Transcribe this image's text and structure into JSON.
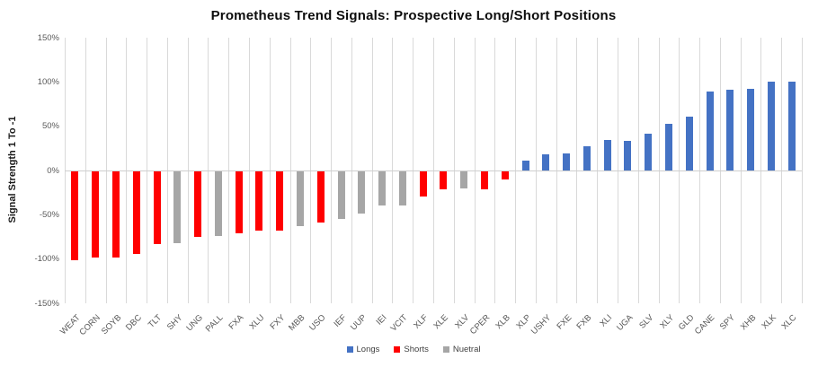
{
  "title": "Prometheus Trend Signals: Prospective Long/Short Positions",
  "colors": {
    "long": "#4472C4",
    "short": "#FF0000",
    "neutral": "#A6A6A6",
    "gridline": "#D9D9D9",
    "axis_text": "#595959"
  },
  "chart_data": {
    "type": "bar",
    "title": "Prometheus Trend Signals: Prospective Long/Short Positions",
    "xlabel": "",
    "ylabel": "Signal Strength 1 To -1",
    "ylim": [
      -150,
      150
    ],
    "yticks": [
      {
        "value": 150,
        "label": "150%"
      },
      {
        "value": 100,
        "label": "100%"
      },
      {
        "value": 50,
        "label": "50%"
      },
      {
        "value": 0,
        "label": "0%"
      },
      {
        "value": -50,
        "label": "-50%"
      },
      {
        "value": -100,
        "label": "-100%"
      },
      {
        "value": -150,
        "label": "-150%"
      }
    ],
    "grid": "vertical-only",
    "legend_position": "bottom-center",
    "value_unit": "percent",
    "categories": [
      "WEAT",
      "CORN",
      "SOYB",
      "DBC",
      "TLT",
      "SHY",
      "UNG",
      "PALL",
      "FXA",
      "XLU",
      "FXY",
      "MBB",
      "USO",
      "IEF",
      "UUP",
      "IEI",
      "VCIT",
      "XLF",
      "XLE",
      "XLV",
      "CPER",
      "XLB",
      "XLP",
      "USHY",
      "FXE",
      "FXB",
      "XLI",
      "UGA",
      "SLV",
      "XLY",
      "GLD",
      "CANE",
      "SPY",
      "XHB",
      "XLK",
      "XLC"
    ],
    "values": [
      -100,
      -97,
      -97,
      -93,
      -82,
      -81,
      -74,
      -73,
      -70,
      -67,
      -67,
      -62,
      -58,
      -54,
      -48,
      -39,
      -39,
      -28,
      -20,
      -19,
      -20,
      -9,
      11,
      18,
      19,
      27,
      34,
      33,
      42,
      53,
      61,
      89,
      91,
      92,
      100,
      100
    ],
    "groups": [
      "short",
      "short",
      "short",
      "short",
      "short",
      "neutral",
      "short",
      "neutral",
      "short",
      "short",
      "short",
      "neutral",
      "short",
      "neutral",
      "neutral",
      "neutral",
      "neutral",
      "short",
      "short",
      "neutral",
      "short",
      "short",
      "long",
      "long",
      "long",
      "long",
      "long",
      "long",
      "long",
      "long",
      "long",
      "long",
      "long",
      "long",
      "long",
      "long"
    ],
    "legend": [
      {
        "label": "Longs",
        "group": "long",
        "color": "#4472C4"
      },
      {
        "label": "Shorts",
        "group": "short",
        "color": "#FF0000"
      },
      {
        "label": "Nuetral",
        "group": "neutral",
        "color": "#A6A6A6"
      }
    ]
  }
}
